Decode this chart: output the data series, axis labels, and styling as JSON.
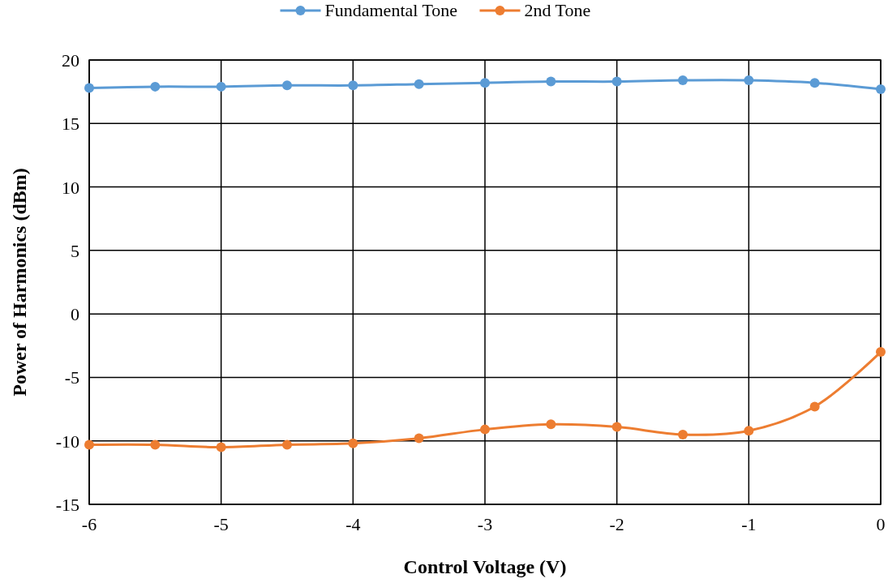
{
  "chart_data": {
    "type": "line",
    "xlabel": "Control Voltage (V)",
    "ylabel": "Power of Harmonics (dBm)",
    "x": [
      -6,
      -5.5,
      -5,
      -4.5,
      -4,
      -3.5,
      -3,
      -2.5,
      -2,
      -1.5,
      -1,
      -0.5,
      0
    ],
    "series": [
      {
        "name": "Fundamental Tone",
        "color": "#5b9bd5",
        "values": [
          17.8,
          17.9,
          17.9,
          18.0,
          18.0,
          18.1,
          18.2,
          18.3,
          18.3,
          18.4,
          18.4,
          18.2,
          17.7
        ]
      },
      {
        "name": "2nd Tone",
        "color": "#ed7d31",
        "values": [
          -10.3,
          -10.3,
          -10.5,
          -10.3,
          -10.2,
          -9.8,
          -9.1,
          -8.7,
          -8.9,
          -9.5,
          -9.2,
          -7.3,
          -3.0
        ]
      }
    ],
    "xlim": [
      -6,
      0
    ],
    "xticks": [
      -6,
      -5,
      -4,
      -3,
      -2,
      -1,
      0
    ],
    "ylim": [
      -15,
      20
    ],
    "yticks": [
      -15,
      -10,
      -5,
      0,
      5,
      10,
      15,
      20
    ],
    "grid": true,
    "legend": "top",
    "marker": "circle",
    "line_style": "solid"
  }
}
